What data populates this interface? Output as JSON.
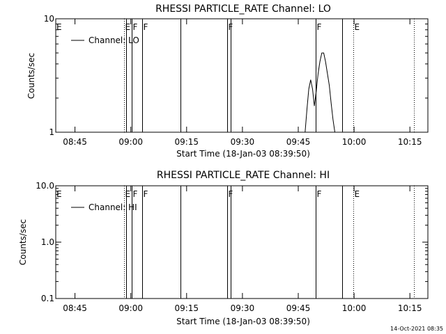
{
  "footer": {
    "timestamp": "14-Oct-2021 08:35"
  },
  "chart_data": [
    {
      "type": "line",
      "title": "RHESSI PARTICLE_RATE Channel: LO",
      "xlabel": "Start Time (18-Jan-03 08:39:50)",
      "ylabel": "Counts/sec",
      "x_unit": "minutes since 08:39:50",
      "xlim": [
        0,
        100
      ],
      "ylim": [
        1,
        10
      ],
      "yscale": "log",
      "ytick_values": [
        1,
        10
      ],
      "ytick_labels": [
        "1",
        "10"
      ],
      "xtick_labels": [
        "08:45",
        "09:00",
        "09:15",
        "09:30",
        "09:45",
        "10:00",
        "10:15"
      ],
      "xtick_times": [
        "08:45",
        "09:00",
        "09:15",
        "09:30",
        "09:45",
        "10:00",
        "10:15"
      ],
      "legend": {
        "position": "top-left",
        "entries": [
          "Channel: LO"
        ]
      },
      "grid": false,
      "series": [
        {
          "name": "Channel: LO",
          "x": [
            0,
            67.0,
            67.5,
            68.0,
            68.5,
            69.0,
            69.5,
            70.0,
            70.5,
            71.0,
            71.5,
            72.0,
            72.5,
            73.0,
            73.5,
            74.0,
            74.5,
            75.0,
            75.5,
            76.0,
            76.5,
            77.0,
            100
          ],
          "y": [
            1,
            1,
            1.6,
            2.4,
            2.9,
            2.4,
            1.7,
            2.3,
            3.3,
            4.2,
            5.0,
            5.0,
            4.2,
            3.3,
            2.6,
            1.8,
            1.3,
            1,
            1,
            1,
            1,
            1,
            1
          ]
        }
      ],
      "event_lines": [
        {
          "time": "08:58:10",
          "label": "E",
          "style": "dotted"
        },
        {
          "time": "08:58:40",
          "label": "",
          "style": "solid"
        },
        {
          "time": "09:00:20",
          "label": "F",
          "style": "solid"
        },
        {
          "time": "09:03:00",
          "label": "F",
          "style": "solid"
        },
        {
          "time": "09:13:20",
          "label": "",
          "style": "solid"
        },
        {
          "time": "09:25:50",
          "label": "F",
          "style": "solid"
        },
        {
          "time": "09:26:50",
          "label": "",
          "style": "solid"
        },
        {
          "time": "09:49:40",
          "label": "F",
          "style": "solid"
        },
        {
          "time": "09:56:50",
          "label": "",
          "style": "solid"
        },
        {
          "time": "09:59:50",
          "label": "E",
          "style": "dotted"
        },
        {
          "time": "10:16:10",
          "label": "",
          "style": "dotted"
        }
      ],
      "edge_label": "E"
    },
    {
      "type": "line",
      "title": "RHESSI PARTICLE_RATE Channel: HI",
      "xlabel": "Start Time (18-Jan-03 08:39:50)",
      "ylabel": "Counts/sec",
      "x_unit": "minutes since 08:39:50",
      "xlim": [
        0,
        100
      ],
      "ylim": [
        0.1,
        10
      ],
      "yscale": "log",
      "ytick_values": [
        0.1,
        1,
        10
      ],
      "ytick_labels": [
        "0.1",
        "1.0",
        "10.0"
      ],
      "xtick_labels": [
        "08:45",
        "09:00",
        "09:15",
        "09:30",
        "09:45",
        "10:00",
        "10:15"
      ],
      "xtick_times": [
        "08:45",
        "09:00",
        "09:15",
        "09:30",
        "09:45",
        "10:00",
        "10:15"
      ],
      "legend": {
        "position": "top-left",
        "entries": [
          "Channel: HI"
        ]
      },
      "grid": false,
      "series": [
        {
          "name": "Channel: HI",
          "x": [],
          "y": []
        }
      ],
      "event_lines": [
        {
          "time": "08:58:10",
          "label": "E",
          "style": "dotted"
        },
        {
          "time": "08:58:40",
          "label": "",
          "style": "solid"
        },
        {
          "time": "09:00:20",
          "label": "F",
          "style": "solid"
        },
        {
          "time": "09:03:00",
          "label": "F",
          "style": "solid"
        },
        {
          "time": "09:13:20",
          "label": "",
          "style": "solid"
        },
        {
          "time": "09:25:50",
          "label": "F",
          "style": "solid"
        },
        {
          "time": "09:26:50",
          "label": "",
          "style": "solid"
        },
        {
          "time": "09:49:40",
          "label": "F",
          "style": "solid"
        },
        {
          "time": "09:56:50",
          "label": "",
          "style": "solid"
        },
        {
          "time": "09:59:50",
          "label": "E",
          "style": "dotted"
        },
        {
          "time": "10:16:10",
          "label": "",
          "style": "dotted"
        }
      ],
      "edge_label": "E"
    }
  ]
}
